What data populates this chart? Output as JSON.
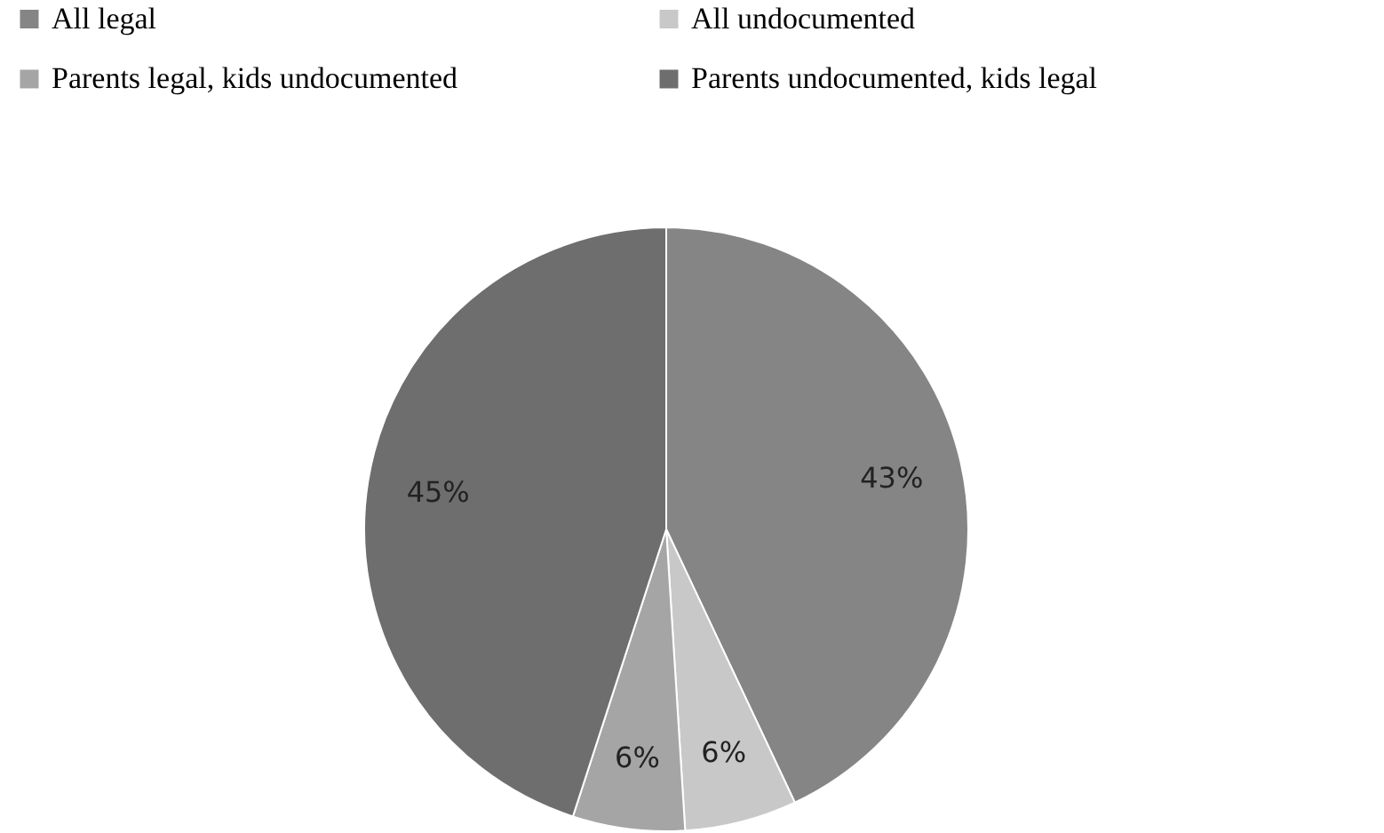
{
  "chart_data": {
    "type": "pie",
    "categories": [
      "All legal",
      "All undocumented",
      "Parents legal, kids undocumented",
      "Parents undocumented, kids legal"
    ],
    "values": [
      43,
      6,
      6,
      45
    ],
    "value_labels": [
      "43%",
      "6%",
      "6%",
      "45%"
    ],
    "colors": [
      "#858585",
      "#c8c8c8",
      "#a5a5a5",
      "#6e6e6e"
    ],
    "legend": "top"
  }
}
